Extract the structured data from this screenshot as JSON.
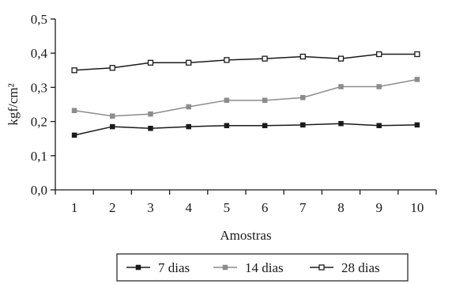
{
  "chart_data": {
    "type": "line",
    "x": [
      1,
      2,
      3,
      4,
      5,
      6,
      7,
      8,
      9,
      10
    ],
    "xlabel": "Amostras",
    "ylabel": "kgf/cm²",
    "ylim": [
      0,
      0.5
    ],
    "yticks": [
      "0,0",
      "0,1",
      "0,2",
      "0,3",
      "0,4",
      "0,5"
    ],
    "xticks": [
      "1",
      "2",
      "3",
      "4",
      "5",
      "6",
      "7",
      "8",
      "9",
      "10"
    ],
    "grid": false,
    "legend_position": "bottom",
    "series": [
      {
        "name": "7 dias",
        "color": "#1a1a1a",
        "marker": "filled-square",
        "values": [
          0.16,
          0.185,
          0.18,
          0.185,
          0.188,
          0.188,
          0.19,
          0.194,
          0.188,
          0.19
        ]
      },
      {
        "name": "14 dias",
        "color": "#8c8c8c",
        "marker": "filled-square",
        "values": [
          0.232,
          0.216,
          0.222,
          0.243,
          0.262,
          0.262,
          0.27,
          0.302,
          0.302,
          0.323
        ]
      },
      {
        "name": "28 dias",
        "color": "#1a1a1a",
        "marker": "open-square",
        "values": [
          0.35,
          0.357,
          0.372,
          0.372,
          0.38,
          0.384,
          0.39,
          0.384,
          0.397,
          0.397
        ]
      }
    ]
  }
}
